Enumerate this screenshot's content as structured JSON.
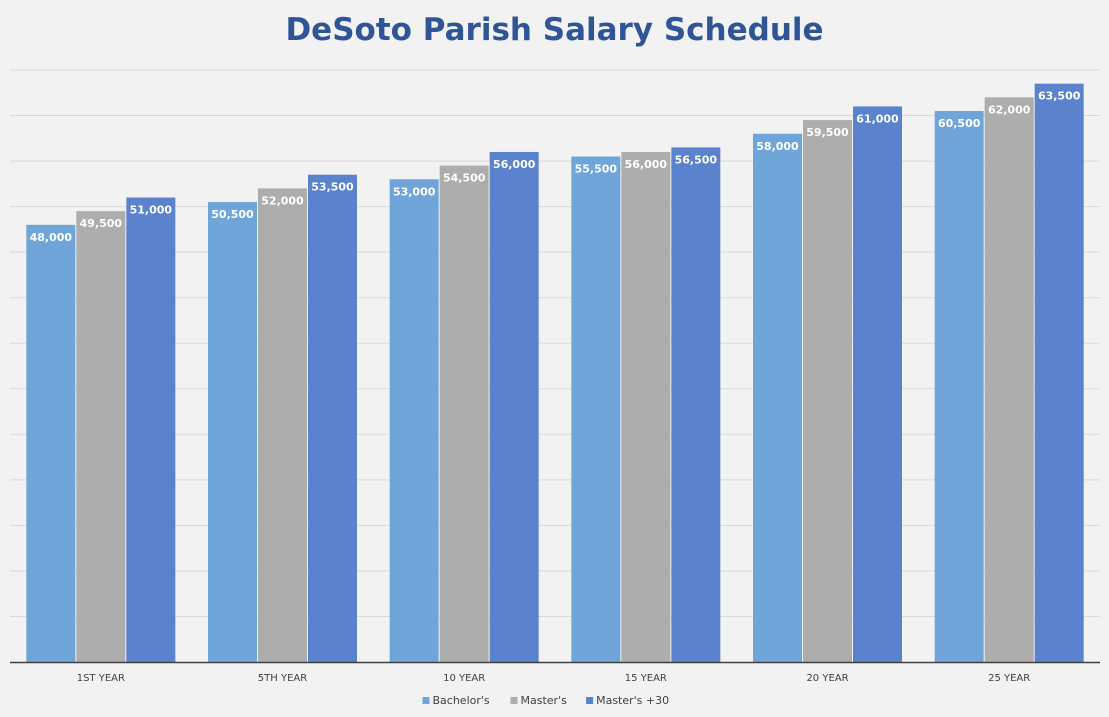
{
  "chart_data": {
    "type": "bar",
    "title": "DeSoto Parish Salary Schedule",
    "xlabel": "",
    "ylabel": "",
    "categories": [
      "1ST YEAR",
      "5TH YEAR",
      "10 YEAR",
      "15 YEAR",
      "20 YEAR",
      "25 YEAR"
    ],
    "series": [
      {
        "name": "Bachelor's",
        "values": [
          48000,
          50500,
          53000,
          55500,
          58000,
          60500
        ],
        "labels": [
          "48,000",
          "50,500",
          "53,000",
          "55,500",
          "58,000",
          "60,500"
        ],
        "color": "#70a5da"
      },
      {
        "name": "Master's",
        "values": [
          49500,
          52000,
          54500,
          56000,
          59500,
          62000
        ],
        "labels": [
          "49,500",
          "52,000",
          "54,500",
          "56,000",
          "59,500",
          "62,000"
        ],
        "color": "#adadad"
      },
      {
        "name": "Master's +30",
        "values": [
          51000,
          53500,
          56000,
          56500,
          61000,
          63500
        ],
        "labels": [
          "51,000",
          "53,500",
          "56,000",
          "56,500",
          "61,000",
          "63,500"
        ],
        "color": "#5b82cc"
      }
    ],
    "ylim": [
      0,
      65000
    ],
    "y_gridline_step": 5000,
    "grid": true,
    "legend": "bottom"
  }
}
